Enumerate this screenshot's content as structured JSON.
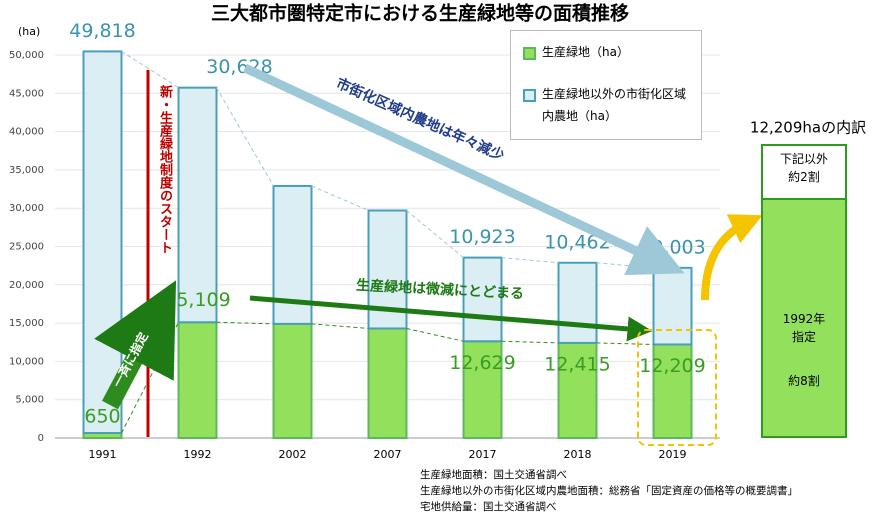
{
  "chart_data": {
    "type": "stacked_bar",
    "title": "三大都市圏特定市における生産緑地等の面積推移",
    "y_label": "(ha)",
    "categories": [
      "1991",
      "1992",
      "2002",
      "2007",
      "2017",
      "2018",
      "2019"
    ],
    "series": [
      {
        "name": "生産緑地（ha）",
        "color": "#92e05c",
        "values": [
          650,
          15109,
          14900,
          14300,
          12629,
          12415,
          12209
        ],
        "value_labels": [
          "650",
          "15,109",
          null,
          null,
          "12,629",
          "12,415",
          "12,209"
        ]
      },
      {
        "name": "生産緑地以外の市街化区域内農地（ha）",
        "color": "#dbeef3",
        "values": [
          49818,
          30628,
          18000,
          15400,
          10923,
          10462,
          10003
        ],
        "value_labels": [
          "49,818",
          "30,628",
          null,
          null,
          "10,923",
          "10,462",
          "10,003"
        ]
      }
    ],
    "ylim": [
      0,
      50000
    ],
    "yticks": [
      0,
      {
        "value": 5000,
        "label": "5,000"
      },
      {
        "value": 10000,
        "label": "10,000"
      },
      {
        "value": 15000,
        "label": "15,000"
      },
      {
        "value": 20000,
        "label": "20,000"
      },
      {
        "value": 25000,
        "label": "25,000"
      },
      {
        "value": 30000,
        "label": "30,000"
      },
      {
        "value": 35000,
        "label": "35,000"
      },
      {
        "value": 40000,
        "label": "40,000"
      },
      {
        "value": 45000,
        "label": "45,000"
      },
      {
        "value": 50000,
        "label": "50,000"
      }
    ],
    "annotations": {
      "start": "新・生産緑地制度のスタート",
      "decline": "市街化区域内農地は年々減少",
      "slight": "生産緑地は微減にとどまる",
      "designate": "一斉に指定"
    },
    "breakdown": {
      "title": "12,209haの内訳",
      "other": "下記以外\n約2割",
      "designated": "1992年\n指定",
      "share": "約8割"
    },
    "notes": [
      "生産緑地面積：国土交通省調べ",
      "生産緑地以外の市街化区域内農地面積：総務省「固定資産の価格等の概要調書」",
      "宅地供給量：国土交通省調べ"
    ]
  }
}
